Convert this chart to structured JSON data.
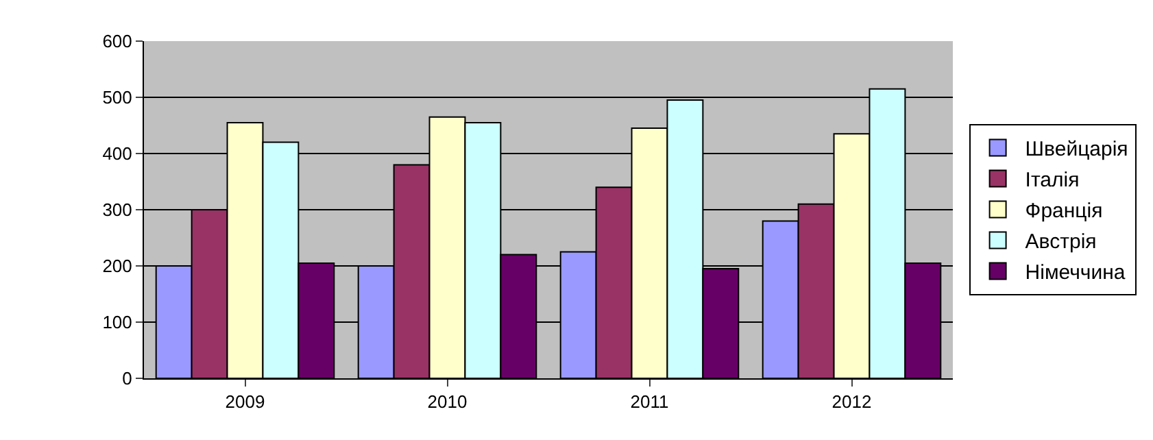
{
  "chart_data": {
    "type": "bar",
    "categories": [
      "2009",
      "2010",
      "2011",
      "2012"
    ],
    "series": [
      {
        "name": "Швейцарія",
        "color": "#9999ff",
        "values": [
          200,
          200,
          225,
          280
        ]
      },
      {
        "name": "Італія",
        "color": "#993366",
        "values": [
          300,
          380,
          340,
          310
        ]
      },
      {
        "name": "Франція",
        "color": "#ffffcc",
        "values": [
          455,
          465,
          445,
          435
        ]
      },
      {
        "name": "Австрія",
        "color": "#ccffff",
        "values": [
          420,
          455,
          495,
          515
        ]
      },
      {
        "name": "Німеччина",
        "color": "#660066",
        "values": [
          205,
          220,
          195,
          205
        ]
      }
    ],
    "ylim": [
      0,
      600
    ],
    "yticks": [
      0,
      100,
      200,
      300,
      400,
      500,
      600
    ],
    "grid": "y",
    "legend": "right"
  }
}
